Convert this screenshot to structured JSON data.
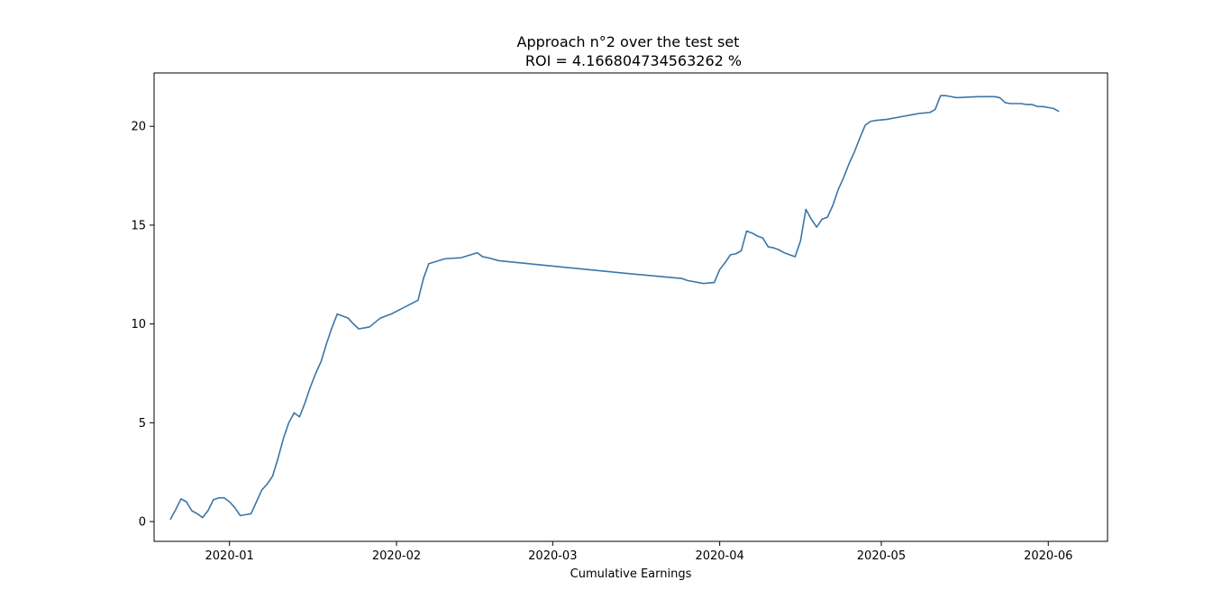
{
  "chart_data": {
    "type": "line",
    "title_lines": [
      "Approach n°2 over the test set",
      "ROI = 4.166804734563262 %"
    ],
    "xlabel": "Cumulative Earnings",
    "ylabel": "",
    "xlim": [
      "2019-12-18",
      "2020-06-12"
    ],
    "ylim": [
      -1.0,
      22.7
    ],
    "grid": false,
    "legend": "none",
    "line_color": "#3a76a8",
    "x_ticks": [
      {
        "date": "2020-01-01",
        "label": "2020-01"
      },
      {
        "date": "2020-02-01",
        "label": "2020-02"
      },
      {
        "date": "2020-03-01",
        "label": "2020-03"
      },
      {
        "date": "2020-04-01",
        "label": "2020-04"
      },
      {
        "date": "2020-05-01",
        "label": "2020-05"
      },
      {
        "date": "2020-06-01",
        "label": "2020-06"
      }
    ],
    "y_ticks": [
      {
        "value": 0,
        "label": "0"
      },
      {
        "value": 5,
        "label": "5"
      },
      {
        "value": 10,
        "label": "10"
      },
      {
        "value": 15,
        "label": "15"
      },
      {
        "value": 20,
        "label": "20"
      }
    ],
    "series": [
      {
        "x": [
          "2019-12-21",
          "2019-12-22",
          "2019-12-23",
          "2019-12-24",
          "2019-12-25",
          "2019-12-26",
          "2019-12-27",
          "2019-12-28",
          "2019-12-29",
          "2019-12-30",
          "2019-12-31",
          "2020-01-01",
          "2020-01-02",
          "2020-01-03",
          "2020-01-04",
          "2020-01-05",
          "2020-01-06",
          "2020-01-07",
          "2020-01-08",
          "2020-01-09",
          "2020-01-10",
          "2020-01-11",
          "2020-01-12",
          "2020-01-13",
          "2020-01-14",
          "2020-01-15",
          "2020-01-16",
          "2020-01-17",
          "2020-01-18",
          "2020-01-19",
          "2020-01-20",
          "2020-01-21",
          "2020-01-22",
          "2020-01-23",
          "2020-01-24",
          "2020-01-25",
          "2020-01-27",
          "2020-01-29",
          "2020-01-31",
          "2020-02-05",
          "2020-02-06",
          "2020-02-07",
          "2020-02-10",
          "2020-02-13",
          "2020-02-16",
          "2020-02-17",
          "2020-02-18",
          "2020-02-20",
          "2020-03-15",
          "2020-03-25",
          "2020-03-26",
          "2020-03-29",
          "2020-03-31",
          "2020-04-01",
          "2020-04-02",
          "2020-04-03",
          "2020-04-04",
          "2020-04-05",
          "2020-04-06",
          "2020-04-07",
          "2020-04-08",
          "2020-04-09",
          "2020-04-10",
          "2020-04-11",
          "2020-04-12",
          "2020-04-13",
          "2020-04-14",
          "2020-04-15",
          "2020-04-16",
          "2020-04-17",
          "2020-04-18",
          "2020-04-19",
          "2020-04-20",
          "2020-04-21",
          "2020-04-22",
          "2020-04-23",
          "2020-04-24",
          "2020-04-25",
          "2020-04-26",
          "2020-04-27",
          "2020-04-28",
          "2020-04-29",
          "2020-04-30",
          "2020-05-02",
          "2020-05-03",
          "2020-05-05",
          "2020-05-07",
          "2020-05-08",
          "2020-05-10",
          "2020-05-11",
          "2020-05-12",
          "2020-05-13",
          "2020-05-15",
          "2020-05-19",
          "2020-05-22",
          "2020-05-23",
          "2020-05-24",
          "2020-05-25",
          "2020-05-26",
          "2020-05-27",
          "2020-05-28",
          "2020-05-29",
          "2020-05-30",
          "2020-05-31",
          "2020-06-01",
          "2020-06-02",
          "2020-06-03"
        ],
        "y": [
          0.1,
          0.6,
          1.15,
          1.0,
          0.55,
          0.4,
          0.2,
          0.55,
          1.1,
          1.2,
          1.2,
          1.0,
          0.7,
          0.3,
          0.35,
          0.4,
          1.0,
          1.6,
          1.9,
          2.3,
          3.2,
          4.2,
          5.0,
          5.5,
          5.3,
          6.0,
          6.8,
          7.5,
          8.1,
          9.0,
          9.8,
          10.5,
          10.4,
          10.3,
          10.0,
          9.75,
          9.85,
          10.3,
          10.5,
          11.2,
          12.3,
          13.05,
          13.3,
          13.35,
          13.6,
          13.4,
          13.35,
          13.2,
          12.55,
          12.3,
          12.2,
          12.05,
          12.1,
          12.75,
          13.1,
          13.5,
          13.55,
          13.7,
          14.7,
          14.6,
          14.45,
          14.35,
          13.9,
          13.85,
          13.75,
          13.6,
          13.5,
          13.4,
          14.2,
          15.8,
          15.3,
          14.9,
          15.3,
          15.4,
          16.0,
          16.8,
          17.4,
          18.1,
          18.7,
          19.4,
          20.05,
          20.25,
          20.3,
          20.35,
          20.4,
          20.5,
          20.6,
          20.65,
          20.7,
          20.85,
          21.55,
          21.55,
          21.45,
          21.5,
          21.5,
          21.45,
          21.2,
          21.15,
          21.15,
          21.15,
          21.1,
          21.1,
          21.0,
          21.0,
          20.95,
          20.9,
          20.75
        ]
      }
    ]
  }
}
